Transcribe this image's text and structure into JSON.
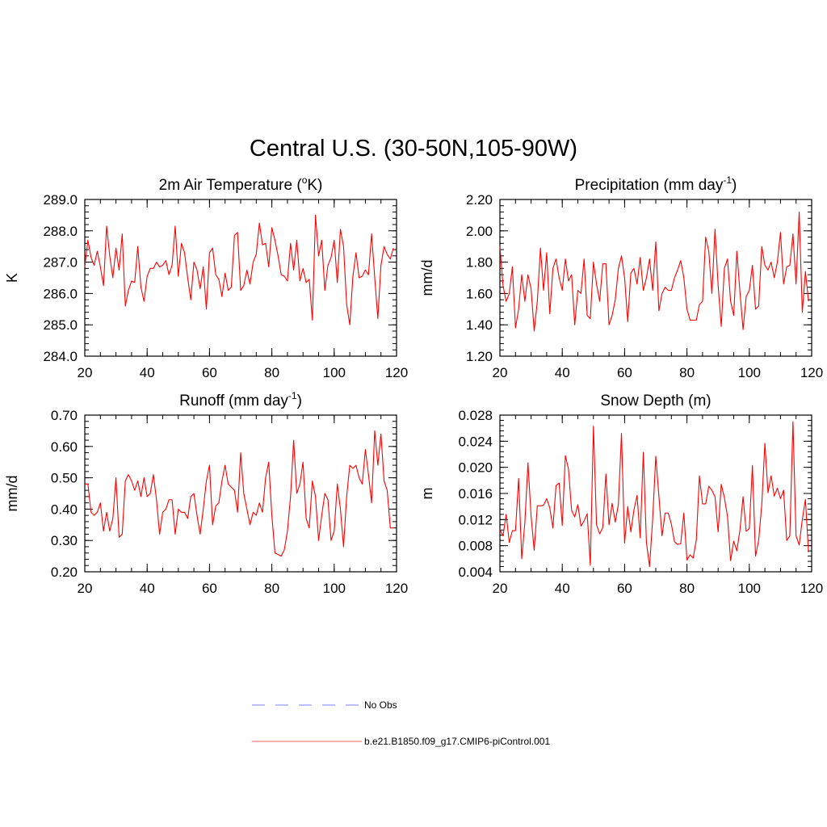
{
  "figure": {
    "title": "Central U.S. (30-50N,105-90W)"
  },
  "legend": [
    {
      "label": "No Obs",
      "color": "#9999ff",
      "style": "dashed"
    },
    {
      "label": "b.e21.B1850.f09_g17.CMIP6-piControl.001",
      "color": "#ff7f7f",
      "style": "solid"
    }
  ],
  "chart_data": [
    {
      "type": "line",
      "title": "2m Air Temperature (°K)",
      "title_parts": {
        "pre": "2m Air Temperature (",
        "sup": "o",
        "post": "K)"
      },
      "xlabel": "",
      "ylabel": "K",
      "xlim": [
        20,
        120
      ],
      "ylim": [
        284.0,
        289.0
      ],
      "xticks": [
        20,
        40,
        60,
        80,
        100,
        120
      ],
      "yticks": [
        284.0,
        285.0,
        286.0,
        287.0,
        288.0,
        289.0
      ],
      "yticklabels": [
        "284.0",
        "285.0",
        "286.0",
        "287.0",
        "288.0",
        "289.0"
      ],
      "x_start": 20,
      "series": [
        {
          "name": "b.e21.B1850.f09_g17.CMIP6-piControl.001",
          "color": "#ff0000",
          "values": [
            286.85,
            287.7,
            287.15,
            286.9,
            287.35,
            286.85,
            286.25,
            288.15,
            287.2,
            286.5,
            287.45,
            286.75,
            287.9,
            285.6,
            286.1,
            286.4,
            286.35,
            287.5,
            286.2,
            285.75,
            286.55,
            286.8,
            286.8,
            287.0,
            286.85,
            286.9,
            287.05,
            286.6,
            286.9,
            288.15,
            286.55,
            287.6,
            287.3,
            286.5,
            285.8,
            287.0,
            286.75,
            286.15,
            286.85,
            285.5,
            287.3,
            287.45,
            286.6,
            286.45,
            285.9,
            286.65,
            286.1,
            286.2,
            287.85,
            287.95,
            286.1,
            286.25,
            286.75,
            286.3,
            287.0,
            287.25,
            288.25,
            287.55,
            287.6,
            286.85,
            288.1,
            287.7,
            287.2,
            286.6,
            286.55,
            286.4,
            287.6,
            286.75,
            287.7,
            286.4,
            286.8,
            286.35,
            286.45,
            285.15,
            288.5,
            287.2,
            287.7,
            286.1,
            286.9,
            287.15,
            287.7,
            286.35,
            288.05,
            287.5,
            285.65,
            285.0,
            286.55,
            287.3,
            286.5,
            286.55,
            286.75,
            286.6,
            287.9,
            286.5,
            285.2,
            286.9,
            287.5,
            287.25,
            287.1,
            287.45
          ]
        }
      ]
    },
    {
      "type": "line",
      "title": "Precipitation (mm day-1)",
      "title_parts": {
        "pre": "Precipitation (mm day",
        "sup": "-1",
        "post": ")"
      },
      "xlabel": "",
      "ylabel": "mm/d",
      "xlim": [
        20,
        120
      ],
      "ylim": [
        1.2,
        2.2
      ],
      "xticks": [
        20,
        40,
        60,
        80,
        100,
        120
      ],
      "yticks": [
        1.2,
        1.4,
        1.6,
        1.8,
        2.0,
        2.2
      ],
      "yticklabels": [
        "1.20",
        "1.40",
        "1.60",
        "1.80",
        "2.00",
        "2.20"
      ],
      "x_start": 20,
      "series": [
        {
          "name": "b.e21.B1850.f09_g17.CMIP6-piControl.001",
          "color": "#ff0000",
          "values": [
            1.9,
            1.65,
            1.55,
            1.6,
            1.77,
            1.38,
            1.5,
            1.72,
            1.55,
            1.72,
            1.63,
            1.36,
            1.55,
            1.89,
            1.62,
            1.86,
            1.47,
            1.76,
            1.82,
            1.7,
            1.62,
            1.82,
            1.68,
            1.72,
            1.4,
            1.62,
            1.6,
            1.82,
            1.46,
            1.44,
            1.8,
            1.66,
            1.55,
            1.79,
            1.79,
            1.4,
            1.46,
            1.56,
            1.76,
            1.84,
            1.7,
            1.42,
            1.73,
            1.76,
            1.66,
            1.83,
            1.62,
            1.7,
            1.82,
            1.62,
            1.93,
            1.49,
            1.6,
            1.64,
            1.62,
            1.62,
            1.7,
            1.75,
            1.81,
            1.7,
            1.5,
            1.43,
            1.43,
            1.43,
            1.53,
            1.55,
            1.96,
            1.87,
            1.6,
            2.01,
            1.65,
            1.39,
            1.76,
            1.82,
            1.55,
            1.46,
            1.87,
            1.61,
            1.37,
            1.58,
            1.62,
            1.78,
            1.5,
            1.52,
            1.9,
            1.78,
            1.75,
            1.8,
            1.7,
            1.8,
            1.99,
            1.66,
            1.77,
            1.78,
            1.98,
            1.66,
            2.12,
            1.48,
            1.74,
            1.55
          ]
        }
      ]
    },
    {
      "type": "line",
      "title": "Runoff (mm day-1)",
      "title_parts": {
        "pre": "Runoff (mm day",
        "sup": "-1",
        "post": ")"
      },
      "xlabel": "",
      "ylabel": "mm/d",
      "xlim": [
        20,
        120
      ],
      "ylim": [
        0.2,
        0.7
      ],
      "xticks": [
        20,
        40,
        60,
        80,
        100,
        120
      ],
      "yticks": [
        0.2,
        0.3,
        0.4,
        0.5,
        0.6,
        0.7
      ],
      "yticklabels": [
        "0.20",
        "0.30",
        "0.40",
        "0.50",
        "0.60",
        "0.70"
      ],
      "x_start": 20,
      "series": [
        {
          "name": "b.e21.B1850.f09_g17.CMIP6-piControl.001",
          "color": "#ff0000",
          "values": [
            0.48,
            0.48,
            0.39,
            0.38,
            0.39,
            0.42,
            0.33,
            0.39,
            0.33,
            0.37,
            0.5,
            0.31,
            0.32,
            0.49,
            0.51,
            0.49,
            0.46,
            0.49,
            0.44,
            0.5,
            0.44,
            0.45,
            0.51,
            0.43,
            0.32,
            0.39,
            0.4,
            0.43,
            0.43,
            0.32,
            0.4,
            0.39,
            0.39,
            0.37,
            0.44,
            0.45,
            0.38,
            0.32,
            0.4,
            0.49,
            0.54,
            0.35,
            0.41,
            0.42,
            0.49,
            0.54,
            0.48,
            0.47,
            0.46,
            0.39,
            0.58,
            0.45,
            0.4,
            0.35,
            0.39,
            0.38,
            0.42,
            0.39,
            0.5,
            0.55,
            0.38,
            0.26,
            0.255,
            0.25,
            0.27,
            0.33,
            0.44,
            0.62,
            0.45,
            0.48,
            0.55,
            0.37,
            0.34,
            0.49,
            0.44,
            0.3,
            0.38,
            0.45,
            0.43,
            0.3,
            0.33,
            0.48,
            0.4,
            0.28,
            0.44,
            0.54,
            0.53,
            0.54,
            0.5,
            0.48,
            0.59,
            0.51,
            0.42,
            0.65,
            0.54,
            0.64,
            0.49,
            0.46,
            0.34,
            0.34
          ]
        }
      ]
    },
    {
      "type": "line",
      "title": "Snow Depth (m)",
      "title_parts": {
        "pre": "Snow Depth (m)",
        "sup": "",
        "post": ""
      },
      "xlabel": "",
      "ylabel": "m",
      "xlim": [
        20,
        120
      ],
      "ylim": [
        0.004,
        0.028
      ],
      "xticks": [
        20,
        40,
        60,
        80,
        100,
        120
      ],
      "yticks": [
        0.004,
        0.008,
        0.012,
        0.016,
        0.02,
        0.024,
        0.028
      ],
      "yticklabels": [
        "0.004",
        "0.008",
        "0.012",
        "0.016",
        "0.020",
        "0.024",
        "0.028"
      ],
      "x_start": 20,
      "series": [
        {
          "name": "b.e21.B1850.f09_g17.CMIP6-piControl.001",
          "color": "#ff0000",
          "values": [
            0.0105,
            0.0095,
            0.0128,
            0.0085,
            0.0103,
            0.0103,
            0.0183,
            0.006,
            0.0115,
            0.0207,
            0.0125,
            0.0073,
            0.0141,
            0.0141,
            0.0142,
            0.0152,
            0.0138,
            0.0107,
            0.0172,
            0.0176,
            0.0111,
            0.0218,
            0.0197,
            0.0134,
            0.0124,
            0.0143,
            0.011,
            0.0118,
            0.0129,
            0.005,
            0.0263,
            0.0112,
            0.0098,
            0.0108,
            0.019,
            0.0112,
            0.0145,
            0.0116,
            0.0143,
            0.0252,
            0.0084,
            0.014,
            0.0101,
            0.0135,
            0.0157,
            0.0092,
            0.0223,
            0.0085,
            0.0048,
            0.0121,
            0.0217,
            0.0156,
            0.0095,
            0.013,
            0.013,
            0.0113,
            0.0086,
            0.0082,
            0.0083,
            0.013,
            0.0058,
            0.0066,
            0.0061,
            0.0089,
            0.0187,
            0.0144,
            0.0144,
            0.0171,
            0.0165,
            0.0155,
            0.0101,
            0.0174,
            0.0154,
            0.0125,
            0.0057,
            0.0087,
            0.0072,
            0.0104,
            0.0155,
            0.0102,
            0.0106,
            0.0203,
            0.0064,
            0.0088,
            0.0143,
            0.0237,
            0.0161,
            0.0187,
            0.0156,
            0.0168,
            0.0152,
            0.0165,
            0.0088,
            0.0095,
            0.027,
            0.0095,
            0.0081,
            0.012,
            0.0151,
            0.007
          ]
        }
      ]
    }
  ]
}
